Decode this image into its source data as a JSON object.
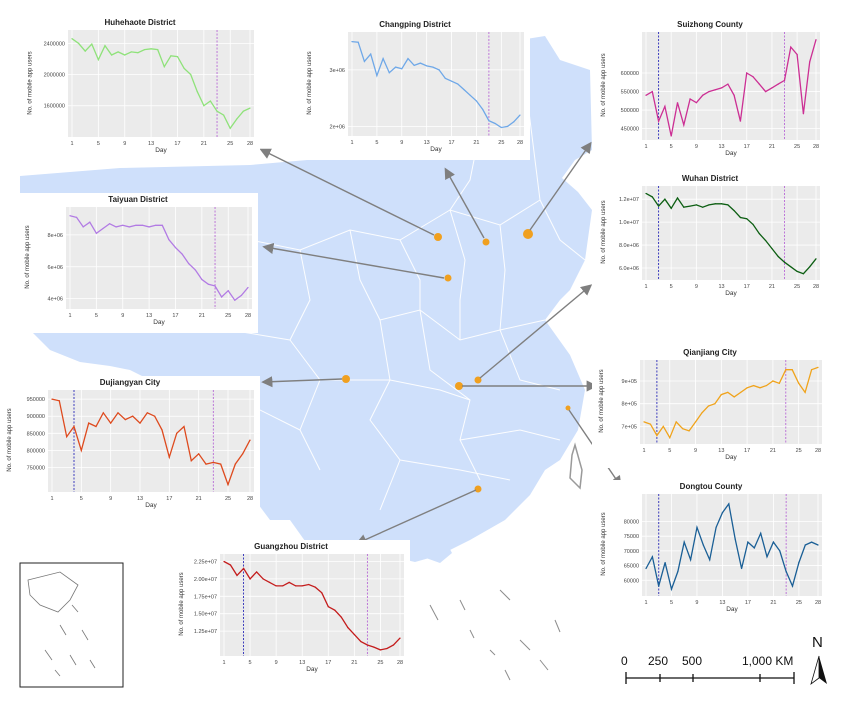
{
  "colors": {
    "land": "#cfe0fb",
    "border": "#ffffff",
    "arrow": "#7f7f7f",
    "marker": "#f0a020",
    "panel_bg": "#ebebeb",
    "vline1": "#2b2bb8",
    "vline2": "#b86ad6"
  },
  "axis_labels": {
    "y": "No. of mobile app users",
    "x": "Day"
  },
  "scale_bar": {
    "labels": [
      "0",
      "250",
      "500",
      "1,000 KM"
    ]
  },
  "north_arrow": {
    "label": "N"
  },
  "chart_data": [
    {
      "id": "huhehaote",
      "type": "line",
      "title": "Huhehaote District",
      "color": "#8fe27a",
      "x": [
        1,
        2,
        3,
        4,
        5,
        6,
        7,
        8,
        9,
        10,
        11,
        12,
        13,
        14,
        15,
        16,
        17,
        18,
        19,
        20,
        21,
        22,
        23,
        24,
        25,
        26,
        27,
        28
      ],
      "values": [
        2460000,
        2400000,
        2300000,
        2390000,
        2190000,
        2370000,
        2250000,
        2290000,
        2250000,
        2290000,
        2280000,
        2320000,
        2330000,
        2320000,
        2100000,
        2240000,
        2230000,
        2080000,
        2000000,
        1780000,
        1600000,
        1660000,
        1530000,
        1480000,
        1310000,
        1430000,
        1530000,
        1570000
      ],
      "yticks": [
        1600000,
        2000000,
        2400000
      ],
      "ytick_labels": [
        "1600000",
        "2000000",
        "2400000"
      ],
      "xticks": [
        1,
        5,
        9,
        13,
        17,
        21,
        25,
        28
      ],
      "ylim": [
        1250000,
        2520000
      ],
      "vlines": [
        23
      ]
    },
    {
      "id": "changping",
      "type": "line",
      "title": "Changping District",
      "color": "#6fa8e8",
      "x": [
        1,
        2,
        3,
        4,
        5,
        6,
        7,
        8,
        9,
        10,
        11,
        12,
        13,
        14,
        15,
        16,
        17,
        18,
        19,
        20,
        21,
        22,
        23,
        24,
        25,
        26,
        27,
        28
      ],
      "values": [
        3500000,
        3490000,
        3150000,
        3280000,
        2900000,
        3200000,
        2950000,
        3050000,
        3020000,
        3200000,
        3080000,
        3120000,
        3070000,
        3050000,
        3000000,
        2850000,
        2800000,
        2750000,
        2650000,
        2550000,
        2450000,
        2300000,
        2100000,
        2050000,
        1980000,
        2000000,
        2080000,
        2200000
      ],
      "yticks": [
        2000000,
        3000000
      ],
      "ytick_labels": [
        "2e+06",
        "3e+06"
      ],
      "xticks": [
        1,
        5,
        9,
        13,
        17,
        21,
        25,
        28
      ],
      "ylim": [
        1900000,
        3600000
      ],
      "vlines": [
        23
      ]
    },
    {
      "id": "suizhong",
      "type": "line",
      "title": "Suizhong County",
      "color": "#cc2f94",
      "x": [
        1,
        2,
        3,
        4,
        5,
        6,
        7,
        8,
        9,
        10,
        11,
        12,
        13,
        14,
        15,
        16,
        17,
        18,
        19,
        20,
        21,
        22,
        23,
        24,
        25,
        26,
        27,
        28
      ],
      "values": [
        540000,
        550000,
        470000,
        510000,
        430000,
        520000,
        460000,
        530000,
        520000,
        540000,
        550000,
        555000,
        560000,
        570000,
        540000,
        470000,
        600000,
        590000,
        570000,
        550000,
        560000,
        570000,
        580000,
        670000,
        650000,
        490000,
        630000,
        690000
      ],
      "yticks": [
        450000,
        500000,
        550000,
        600000
      ],
      "ytick_labels": [
        "450000",
        "500000",
        "550000",
        "600000"
      ],
      "xticks": [
        1,
        5,
        9,
        13,
        17,
        21,
        25,
        28
      ],
      "ylim": [
        430000,
        700000
      ],
      "vlines": [
        3,
        23
      ]
    },
    {
      "id": "taiyuan",
      "type": "line",
      "title": "Taiyuan District",
      "color": "#b27be4",
      "x": [
        1,
        2,
        3,
        4,
        5,
        6,
        7,
        8,
        9,
        10,
        11,
        12,
        13,
        14,
        15,
        16,
        17,
        18,
        19,
        20,
        21,
        22,
        23,
        24,
        25,
        26,
        27,
        28
      ],
      "values": [
        9200000,
        9100000,
        8500000,
        8800000,
        8100000,
        8400000,
        8700000,
        8500000,
        8600000,
        8500000,
        8600000,
        8600000,
        8500000,
        8600000,
        8600000,
        7700000,
        7200000,
        6800000,
        6200000,
        5800000,
        5200000,
        4900000,
        4800000,
        4100000,
        4500000,
        3900000,
        4200000,
        4700000
      ],
      "yticks": [
        4000000,
        6000000,
        8000000
      ],
      "ytick_labels": [
        "4e+06",
        "6e+06",
        "8e+06"
      ],
      "xticks": [
        1,
        5,
        9,
        13,
        17,
        21,
        25,
        28
      ],
      "ylim": [
        3600000,
        9500000
      ],
      "vlines": [
        23
      ]
    },
    {
      "id": "wuhan",
      "type": "line",
      "title": "Wuhan District",
      "color": "#0c5e12",
      "x": [
        1,
        2,
        3,
        4,
        5,
        6,
        7,
        8,
        9,
        10,
        11,
        12,
        13,
        14,
        15,
        16,
        17,
        18,
        19,
        20,
        21,
        22,
        23,
        24,
        25,
        26,
        27,
        28
      ],
      "values": [
        12500000,
        12200000,
        11400000,
        12000000,
        11200000,
        12100000,
        11300000,
        11400000,
        11500000,
        11300000,
        11500000,
        11600000,
        11600000,
        11500000,
        11000000,
        10400000,
        10300000,
        9800000,
        9000000,
        8400000,
        7700000,
        7000000,
        6500000,
        6100000,
        5700000,
        5500000,
        6100000,
        6800000
      ],
      "yticks": [
        6000000,
        8000000,
        10000000,
        12000000
      ],
      "ytick_labels": [
        "6.0e+06",
        "8.0e+06",
        "1.0e+07",
        "1.2e+07"
      ],
      "xticks": [
        1,
        5,
        9,
        13,
        17,
        21,
        25,
        28
      ],
      "ylim": [
        5300000,
        12800000
      ],
      "vlines": [
        3,
        23
      ]
    },
    {
      "id": "dujiangyan",
      "type": "line",
      "title": "Dujiangyan City",
      "color": "#de4a1e",
      "x": [
        1,
        2,
        3,
        4,
        5,
        6,
        7,
        8,
        9,
        10,
        11,
        12,
        13,
        14,
        15,
        16,
        17,
        18,
        19,
        20,
        21,
        22,
        23,
        24,
        25,
        26,
        27,
        28
      ],
      "values": [
        950000,
        945000,
        840000,
        870000,
        800000,
        880000,
        870000,
        910000,
        880000,
        910000,
        890000,
        900000,
        880000,
        910000,
        900000,
        860000,
        780000,
        850000,
        870000,
        770000,
        790000,
        760000,
        765000,
        760000,
        700000,
        760000,
        790000,
        830000
      ],
      "yticks": [
        750000,
        800000,
        850000,
        900000,
        950000
      ],
      "ytick_labels": [
        "750000",
        "800000",
        "850000",
        "900000",
        "950000"
      ],
      "xticks": [
        1,
        5,
        9,
        13,
        17,
        21,
        25,
        28
      ],
      "ylim": [
        690000,
        965000
      ],
      "vlines": [
        4,
        23
      ]
    },
    {
      "id": "qianjiang",
      "type": "line",
      "title": "Qianjiang City",
      "color": "#f0a31b",
      "x": [
        1,
        2,
        3,
        4,
        5,
        6,
        7,
        8,
        9,
        10,
        11,
        12,
        13,
        14,
        15,
        16,
        17,
        18,
        19,
        20,
        21,
        22,
        23,
        24,
        25,
        26,
        27,
        28
      ],
      "values": [
        720000,
        710000,
        660000,
        700000,
        650000,
        720000,
        690000,
        680000,
        720000,
        760000,
        790000,
        800000,
        840000,
        850000,
        830000,
        850000,
        870000,
        880000,
        870000,
        880000,
        900000,
        890000,
        950000,
        950000,
        890000,
        850000,
        950000,
        960000
      ],
      "yticks": [
        700000,
        800000,
        900000
      ],
      "ytick_labels": [
        "7e+05",
        "8e+05",
        "9e+05"
      ],
      "xticks": [
        1,
        5,
        9,
        13,
        17,
        21,
        25,
        28
      ],
      "ylim": [
        640000,
        975000
      ],
      "vlines": [
        3,
        23
      ]
    },
    {
      "id": "dongtou",
      "type": "line",
      "title": "Dongtou County",
      "color": "#1a5f96",
      "x": [
        1,
        2,
        3,
        4,
        5,
        6,
        7,
        8,
        9,
        10,
        11,
        12,
        13,
        14,
        15,
        16,
        17,
        18,
        19,
        20,
        21,
        22,
        23,
        24,
        25,
        26,
        27,
        28
      ],
      "values": [
        64000,
        68000,
        58000,
        66000,
        57000,
        63000,
        73000,
        67000,
        78000,
        72000,
        67000,
        78000,
        83000,
        86000,
        74000,
        64000,
        73000,
        71000,
        76000,
        68000,
        73000,
        70000,
        63000,
        58000,
        66000,
        72000,
        73000,
        72000
      ],
      "yticks": [
        60000,
        65000,
        70000,
        75000,
        80000
      ],
      "ytick_labels": [
        "60000",
        "65000",
        "70000",
        "75000",
        "80000"
      ],
      "xticks": [
        1,
        5,
        9,
        13,
        17,
        21,
        25,
        28
      ],
      "ylim": [
        56000,
        88000
      ],
      "vlines": [
        3,
        23
      ]
    },
    {
      "id": "guangzhou",
      "type": "line",
      "title": "Guangzhou District",
      "color": "#c41c1c",
      "x": [
        1,
        2,
        3,
        4,
        5,
        6,
        7,
        8,
        9,
        10,
        11,
        12,
        13,
        14,
        15,
        16,
        17,
        18,
        19,
        20,
        21,
        22,
        23,
        24,
        25,
        26,
        27,
        28
      ],
      "values": [
        22500000,
        22000000,
        20500000,
        21500000,
        20000000,
        21000000,
        20000000,
        19500000,
        19000000,
        19000000,
        19500000,
        19000000,
        19000000,
        19200000,
        18800000,
        18000000,
        16000000,
        15500000,
        14500000,
        13000000,
        12000000,
        11000000,
        10500000,
        10200000,
        9800000,
        10000000,
        10500000,
        11500000
      ],
      "yticks": [
        12500000,
        15000000,
        17500000,
        20000000,
        22500000
      ],
      "ytick_labels": [
        "1.25e+07",
        "1.50e+07",
        "1.75e+07",
        "2.00e+07",
        "2.25e+07"
      ],
      "xticks": [
        1,
        5,
        9,
        13,
        17,
        21,
        25,
        28
      ],
      "ylim": [
        9500000,
        23000000
      ],
      "vlines": [
        4,
        23
      ]
    }
  ]
}
